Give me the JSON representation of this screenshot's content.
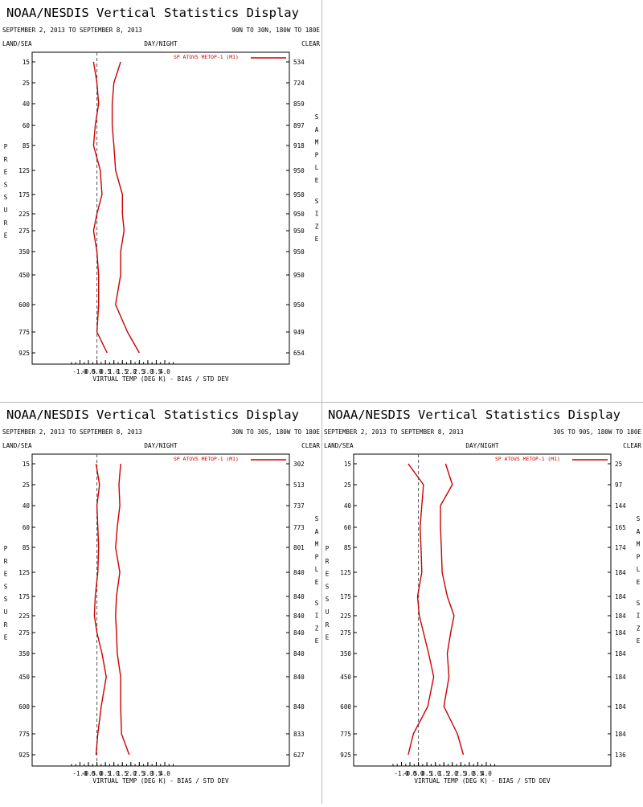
{
  "chart_data": [
    {
      "type": "line",
      "title": "NOAA/NESDIS Vertical Statistics Display",
      "date_range": "SEPTEMBER 2, 2013 TO SEPTEMBER 8, 2013",
      "region": "90N TO 30N, 180W TO 180E",
      "corner_left": "LAND/SEA",
      "corner_mid": "DAY/NIGHT",
      "corner_right": "CLEAR",
      "ylabel": "PRESSURE",
      "y2label": "SAMPLE SIZE",
      "xlabel": "VIRTUAL TEMP (DEG K) - BIAS / STD DEV",
      "xlim": [
        -1.5,
        4.5
      ],
      "x_ticks": [
        "-1.0",
        "-0.5",
        "0.0",
        "0.5",
        "1.0",
        "1.5",
        "2.0",
        "2.5",
        "3.0",
        "3.5",
        "4.0"
      ],
      "legend": "SP ATOVS METOP-1 (M1)",
      "legend_position": "top-right",
      "y_scale": "log",
      "pressure_levels": [
        "15",
        "25",
        "40",
        "60",
        "85",
        "125",
        "175",
        "225",
        "275",
        "350",
        "450",
        "600",
        "775",
        "925"
      ],
      "sample_size": [
        "534",
        "724",
        "859",
        "897",
        "918",
        "950",
        "950",
        "950",
        "950",
        "950",
        "950",
        "950",
        "949",
        "654"
      ],
      "series": [
        {
          "name": "BIAS",
          "values": [
            -0.2,
            0.0,
            0.1,
            -0.1,
            -0.2,
            0.2,
            0.3,
            0.0,
            -0.2,
            0.0,
            0.1,
            0.1,
            0.0,
            0.6
          ]
        },
        {
          "name": "STD DEV",
          "values": [
            1.4,
            1.0,
            0.9,
            0.9,
            1.0,
            1.1,
            1.5,
            1.5,
            1.6,
            1.4,
            1.4,
            1.1,
            1.8,
            2.5
          ]
        }
      ],
      "line_color": "#cc0000"
    },
    {
      "type": "line",
      "title": "NOAA/NESDIS Vertical Statistics Display",
      "date_range": "SEPTEMBER 2, 2013 TO SEPTEMBER 8, 2013",
      "region": "30N TO 30S, 180W TO 180E",
      "corner_left": "LAND/SEA",
      "corner_mid": "DAY/NIGHT",
      "corner_right": "CLEAR",
      "ylabel": "PRESSURE",
      "y2label": "SAMPLE SIZE",
      "xlabel": "VIRTUAL TEMP (DEG K) - BIAS / STD DEV",
      "xlim": [
        -1.5,
        4.5
      ],
      "x_ticks": [
        "-1.0",
        "-0.5",
        "0.0",
        "0.5",
        "1.0",
        "1.5",
        "2.0",
        "2.5",
        "3.0",
        "3.5",
        "4.0"
      ],
      "legend": "SP ATOVS METOP-1 (M1)",
      "legend_position": "top-right",
      "y_scale": "log",
      "pressure_levels": [
        "15",
        "25",
        "40",
        "60",
        "85",
        "125",
        "175",
        "225",
        "275",
        "350",
        "450",
        "600",
        "775",
        "925"
      ],
      "sample_size": [
        "302",
        "513",
        "737",
        "773",
        "801",
        "840",
        "840",
        "840",
        "840",
        "840",
        "840",
        "840",
        "833",
        "627"
      ],
      "series": [
        {
          "name": "BIAS",
          "values": [
            -0.05,
            0.15,
            0.0,
            0.05,
            0.1,
            0.05,
            -0.1,
            -0.15,
            0.0,
            0.3,
            0.55,
            0.25,
            0.05,
            -0.05
          ]
        },
        {
          "name": "STD DEV",
          "values": [
            1.4,
            1.3,
            1.35,
            1.2,
            1.1,
            1.35,
            1.15,
            1.1,
            1.15,
            1.2,
            1.4,
            1.4,
            1.45,
            1.9
          ]
        }
      ],
      "line_color": "#cc0000"
    },
    {
      "type": "line",
      "title": "NOAA/NESDIS Vertical Statistics Display",
      "date_range": "SEPTEMBER 2, 2013 TO SEPTEMBER 8, 2013",
      "region": "30S TO 90S, 180W TO 180E",
      "corner_left": "LAND/SEA",
      "corner_mid": "DAY/NIGHT",
      "corner_right": "CLEAR",
      "ylabel": "PRESSURE",
      "y2label": "SAMPLE SIZE",
      "xlabel": "VIRTUAL TEMP (DEG K) - BIAS / STD DEV",
      "xlim": [
        -1.5,
        4.5
      ],
      "x_ticks": [
        "-1.0",
        "-0.5",
        "0.0",
        "0.5",
        "1.0",
        "1.5",
        "2.0",
        "2.5",
        "3.0",
        "3.5",
        "4.0"
      ],
      "legend": "SP ATOVS METOP-1 (M1)",
      "legend_position": "top-right",
      "y_scale": "log",
      "pressure_levels": [
        "15",
        "25",
        "40",
        "60",
        "85",
        "125",
        "175",
        "225",
        "275",
        "350",
        "450",
        "600",
        "775",
        "925"
      ],
      "sample_size": [
        "25",
        "97",
        "144",
        "165",
        "174",
        "184",
        "184",
        "184",
        "184",
        "184",
        "184",
        "184",
        "184",
        "136"
      ],
      "series": [
        {
          "name": "BIAS",
          "values": [
            -0.6,
            0.3,
            0.2,
            0.1,
            0.15,
            0.2,
            -0.05,
            0.05,
            0.3,
            0.6,
            0.9,
            0.55,
            -0.3,
            -0.6
          ]
        },
        {
          "name": "STD DEV",
          "values": [
            1.6,
            2.0,
            1.3,
            1.3,
            1.35,
            1.4,
            1.7,
            2.1,
            1.9,
            1.7,
            1.8,
            1.5,
            2.3,
            2.65
          ]
        }
      ],
      "line_color": "#cc0000"
    }
  ]
}
